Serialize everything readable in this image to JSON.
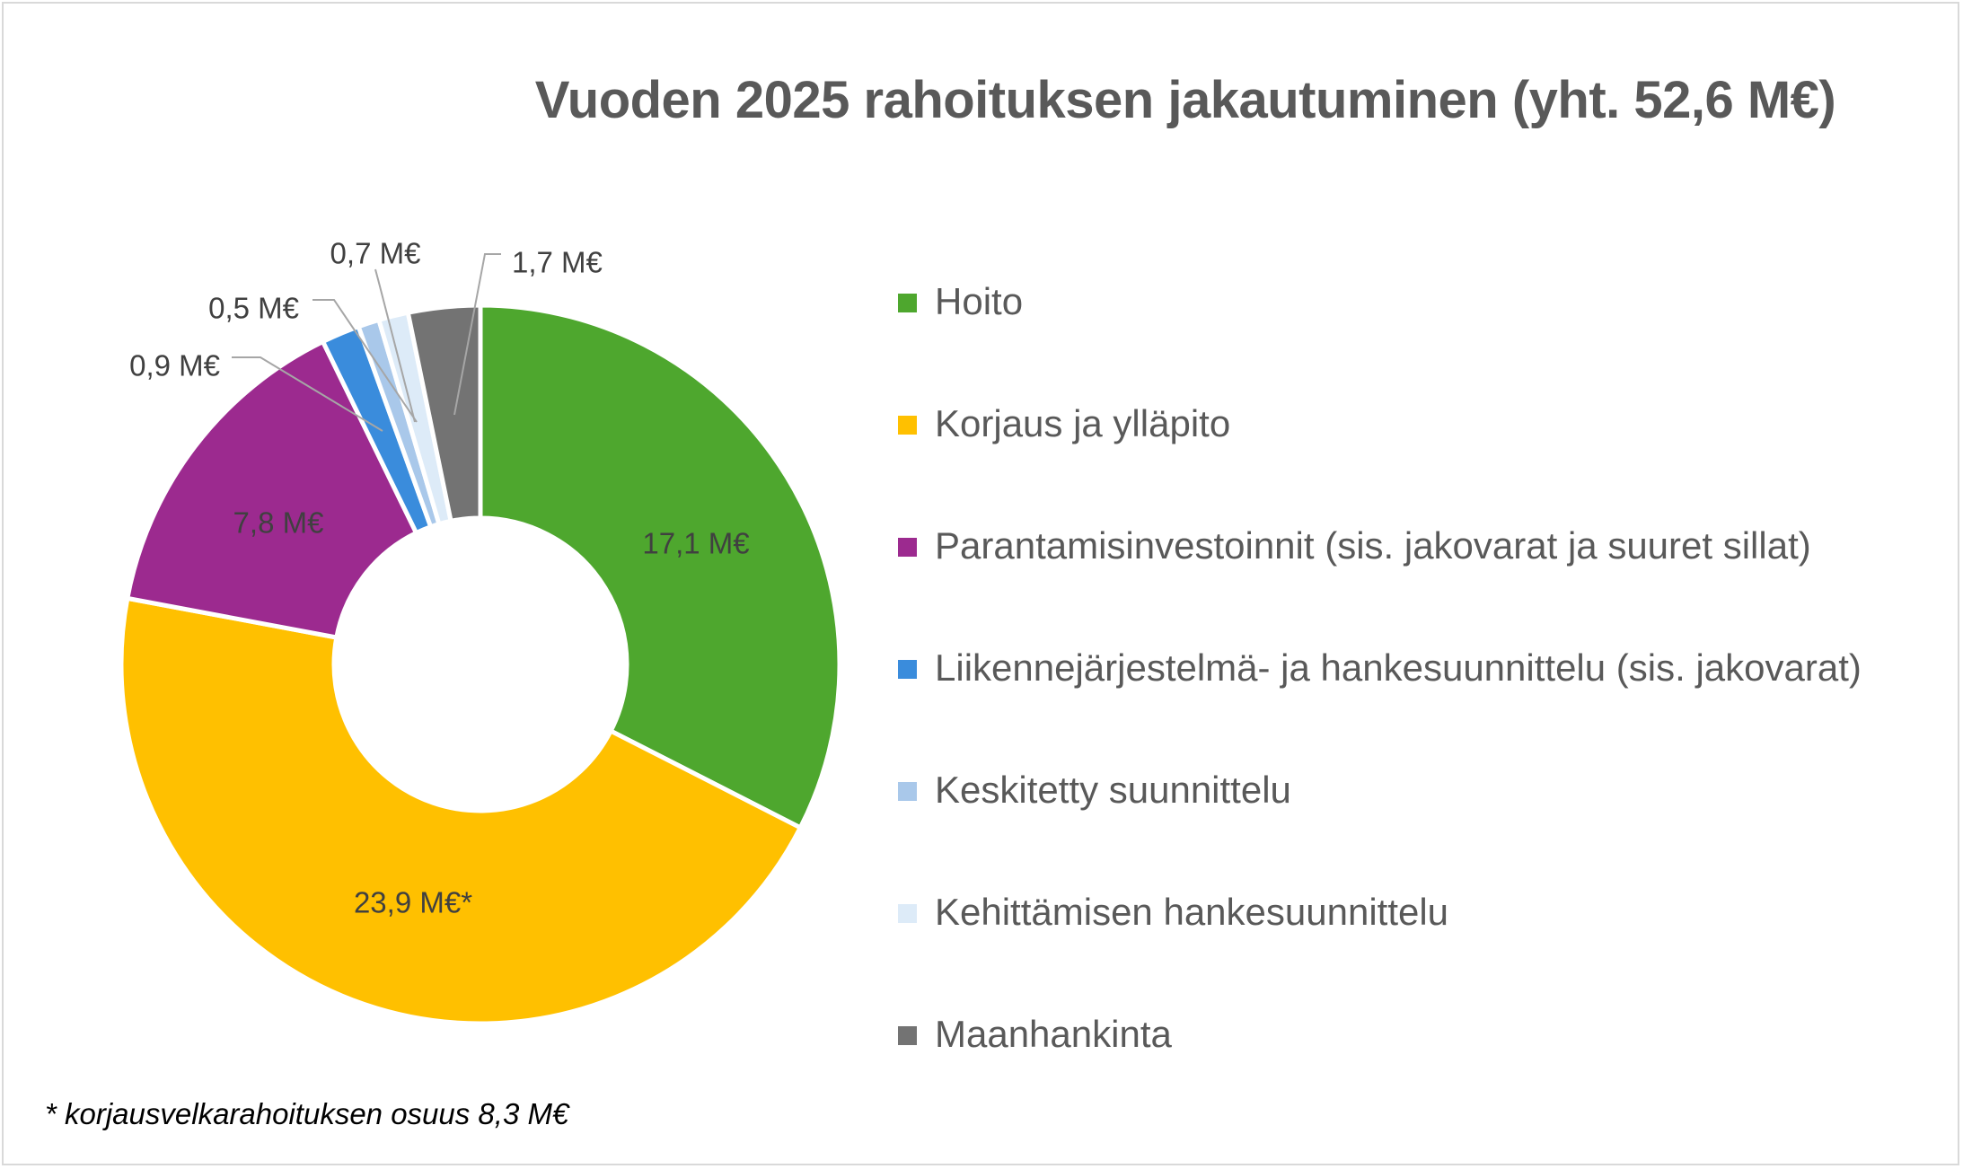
{
  "chart_data": {
    "type": "pie",
    "title": "Vuoden 2025 rahoituksen jakautuminen (yht. 52,6 M€)",
    "total": 52.6,
    "unit": "M€",
    "slices": [
      {
        "name": "Hoito",
        "value": 17.1,
        "label": "17,1 M€",
        "color": "#4ea72e"
      },
      {
        "name": "Korjaus ja ylläpito",
        "value": 23.9,
        "label": "23,9 M€*",
        "color": "#ffc000"
      },
      {
        "name": "Parantamisinvestoinnit (sis. jakovarat ja suuret sillat)",
        "value": 7.8,
        "label": "7,8 M€",
        "color": "#9c2a8f"
      },
      {
        "name": "Liikennejärjestelmä- ja hankesuunnittelu (sis. jakovarat)",
        "value": 0.9,
        "label": "0,9 M€",
        "color": "#3a8cdc"
      },
      {
        "name": "Keskitetty suunnittelu",
        "value": 0.5,
        "label": "0,5 M€",
        "color": "#a9c8ea"
      },
      {
        "name": "Kehittämisen hankesuunnittelu",
        "value": 0.7,
        "label": "0,7 M€",
        "color": "#ddebf8"
      },
      {
        "name": "Maanhankinta",
        "value": 1.7,
        "label": "1,7 M€",
        "color": "#737373"
      }
    ],
    "legend_position": "right",
    "footnote": "* korjausvelkarahoituksen osuus 8,3 M€"
  }
}
